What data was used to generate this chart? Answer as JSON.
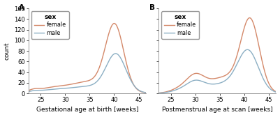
{
  "title_left": "A",
  "title_right": "B",
  "xlabel_left": "Gestational age at birth [weeks]",
  "xlabel_right": "Postmenstrual age at scan [weeks]",
  "ylabel": "count",
  "legend_title": "sex",
  "legend_female": "female",
  "legend_male": "male",
  "color_female": "#D4896A",
  "color_male": "#8CAFC4",
  "xlim": [
    22.5,
    46.5
  ],
  "ylim": [
    0,
    160
  ],
  "xticks": [
    25,
    30,
    35,
    40,
    45
  ],
  "yticks": [
    0,
    20,
    40,
    60,
    80,
    100,
    120,
    140,
    160
  ],
  "background": "#ffffff",
  "figsize": [
    4.01,
    1.68
  ],
  "dpi": 100
}
